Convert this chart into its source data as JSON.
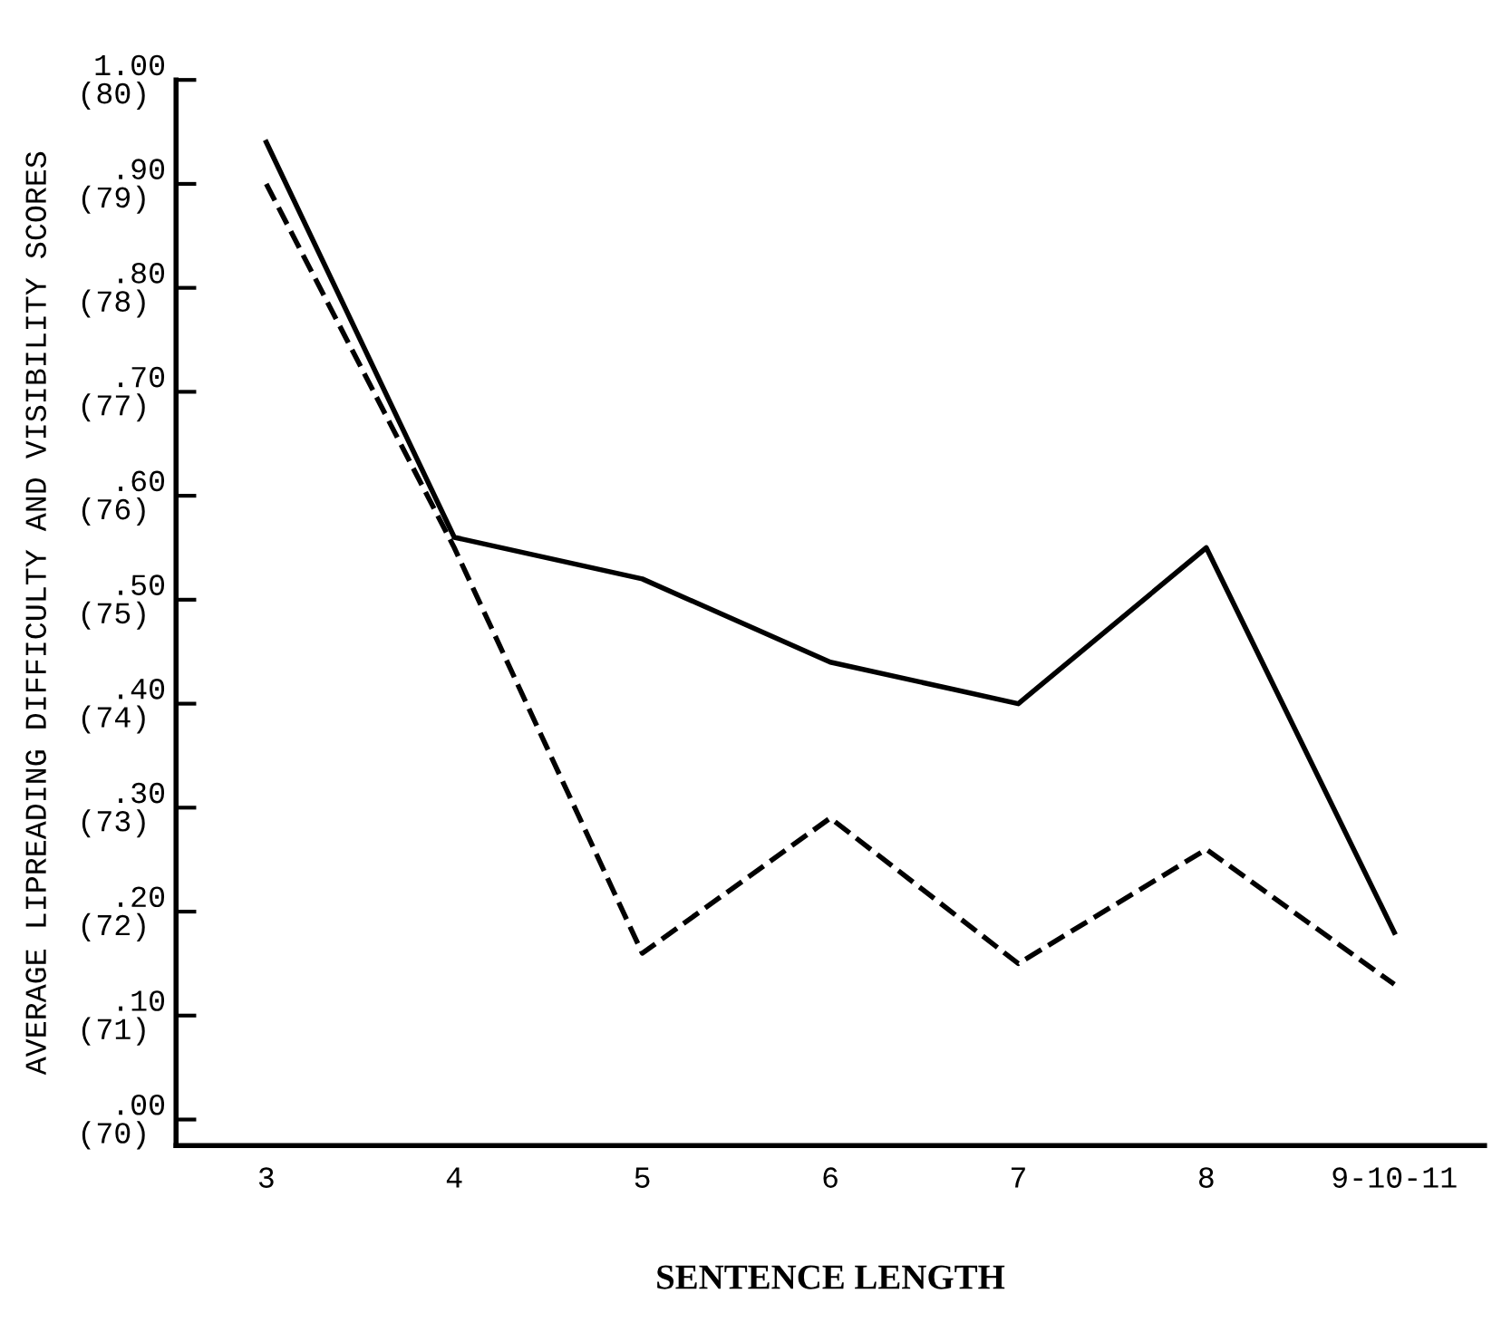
{
  "chart_data": {
    "type": "line",
    "xlabel": "SENTENCE LENGTH",
    "y2label": "AVERAGE LIPREADING DIFFICULTY AND VISIBILITY SCORES",
    "categories": [
      "3",
      "4",
      "5",
      "6",
      "7",
      "8",
      "9-10-11"
    ],
    "series": [
      {
        "color": "#000000",
        "line_style": "solid",
        "values": [
          0.94,
          0.56,
          0.52,
          0.44,
          0.4,
          0.55,
          0.18
        ]
      },
      {
        "color": "#000000",
        "line_style": "dashed",
        "values": [
          0.9,
          0.55,
          0.16,
          0.29,
          0.15,
          0.26,
          0.13
        ]
      }
    ],
    "ylim": [
      -0.025,
      1.0
    ],
    "yticks": [
      {
        "value": 1.0,
        "label": "1.00"
      },
      {
        "value": 0.9,
        "label": ".90"
      },
      {
        "value": 0.8,
        "label": ".80"
      },
      {
        "value": 0.7,
        "label": ".70"
      },
      {
        "value": 0.6,
        "label": ".60"
      },
      {
        "value": 0.5,
        "label": ".50"
      },
      {
        "value": 0.4,
        "label": ".40"
      },
      {
        "value": 0.3,
        "label": ".30"
      },
      {
        "value": 0.2,
        "label": ".20"
      },
      {
        "value": 0.1,
        "label": ".10"
      },
      {
        "value": 0.0,
        "label": ".00"
      }
    ],
    "y2lim": [
      69.75,
      80
    ],
    "y2ticks": [
      {
        "value": 80,
        "label": "(80)"
      },
      {
        "value": 79,
        "label": "(79)"
      },
      {
        "value": 78,
        "label": "(78)"
      },
      {
        "value": 77,
        "label": "(77)"
      },
      {
        "value": 76,
        "label": "(76)"
      },
      {
        "value": 75,
        "label": "(75)"
      },
      {
        "value": 74,
        "label": "(74)"
      },
      {
        "value": 73,
        "label": "(73)"
      },
      {
        "value": 72,
        "label": "(72)"
      },
      {
        "value": 71,
        "label": "(71)"
      },
      {
        "value": 70,
        "label": "(70)"
      }
    ],
    "grid": false,
    "legend": false
  }
}
